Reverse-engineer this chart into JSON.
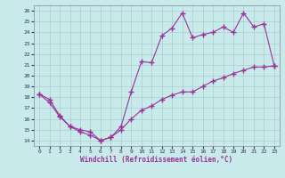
{
  "xlabel": "Windchill (Refroidissement éolien,°C)",
  "bg_color": "#c8eaea",
  "line_color": "#993399",
  "grid_color": "#aacccc",
  "xlim": [
    -0.5,
    23.5
  ],
  "ylim": [
    13.5,
    26.5
  ],
  "xticks": [
    0,
    1,
    2,
    3,
    4,
    5,
    6,
    7,
    8,
    9,
    10,
    11,
    12,
    13,
    14,
    15,
    16,
    17,
    18,
    19,
    20,
    21,
    22,
    23
  ],
  "yticks": [
    14,
    15,
    16,
    17,
    18,
    19,
    20,
    21,
    22,
    23,
    24,
    25,
    26
  ],
  "series1_x": [
    0,
    1,
    2,
    3,
    4,
    5,
    6,
    7,
    8,
    9,
    10,
    11,
    12,
    13,
    14,
    15,
    16,
    17,
    18,
    19,
    20,
    21,
    22,
    23
  ],
  "series1_y": [
    18.3,
    17.8,
    16.3,
    15.3,
    14.8,
    14.5,
    14.0,
    14.3,
    15.3,
    18.5,
    21.3,
    21.2,
    23.7,
    24.4,
    25.8,
    23.5,
    23.8,
    24.0,
    24.5,
    24.0,
    25.8,
    24.5,
    24.8,
    20.9
  ],
  "series2_x": [
    0,
    1,
    2,
    3,
    4,
    5,
    6,
    7,
    8,
    9,
    10,
    11,
    12,
    13,
    14,
    15,
    16,
    17,
    18,
    19,
    20,
    21,
    22,
    23
  ],
  "series2_y": [
    18.3,
    17.5,
    16.2,
    15.3,
    15.0,
    14.8,
    14.0,
    14.3,
    15.0,
    16.0,
    16.8,
    17.2,
    17.8,
    18.2,
    18.5,
    18.5,
    19.0,
    19.5,
    19.8,
    20.2,
    20.5,
    20.8,
    20.8,
    20.9
  ]
}
